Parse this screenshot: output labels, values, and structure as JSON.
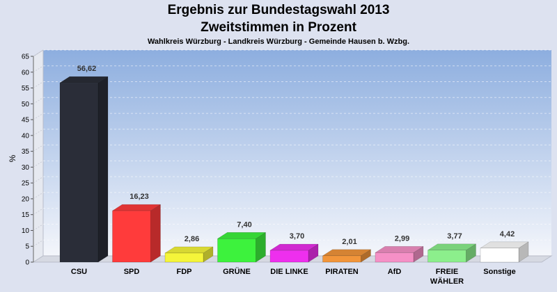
{
  "chart_data": {
    "type": "bar",
    "title": "Ergebnis zur Bundestagswahl 2013",
    "subtitle": "Zweitstimmen in Prozent",
    "caption": "Wahlkreis Würzburg - Landkreis Würzburg - Gemeinde Hausen b. Wzbg.",
    "ylabel": "%",
    "ylim": [
      0,
      65
    ],
    "yticks": [
      "0",
      "5",
      "10",
      "15",
      "20",
      "25",
      "30",
      "35",
      "40",
      "45",
      "50",
      "55",
      "60",
      "65"
    ],
    "grid": true,
    "categories": [
      {
        "line1": "CSU",
        "line2": ""
      },
      {
        "line1": "SPD",
        "line2": ""
      },
      {
        "line1": "FDP",
        "line2": ""
      },
      {
        "line1": "GRÜNE",
        "line2": ""
      },
      {
        "line1": "DIE LINKE",
        "line2": ""
      },
      {
        "line1": "PIRATEN",
        "line2": ""
      },
      {
        "line1": "AfD",
        "line2": ""
      },
      {
        "line1": "FREIE",
        "line2": "WÄHLER"
      },
      {
        "line1": "Sonstige",
        "line2": ""
      }
    ],
    "values": [
      56.62,
      16.23,
      2.86,
      7.4,
      3.7,
      2.01,
      2.99,
      3.77,
      4.42
    ],
    "value_labels": [
      "56,62",
      "16,23",
      "2,86",
      "7,40",
      "3,70",
      "2,01",
      "2,99",
      "3,77",
      "4,42"
    ],
    "colors": [
      "#2a2d38",
      "#ff3b3b",
      "#f5f53a",
      "#3df23d",
      "#ee2fee",
      "#f2953a",
      "#f590c6",
      "#8cef8c",
      "#ffffff"
    ]
  }
}
